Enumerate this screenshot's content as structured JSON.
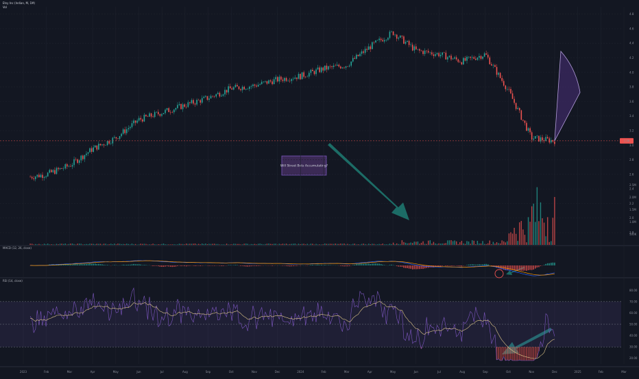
{
  "header": {
    "title": "Etsy Inc (Indian, M, 1M)",
    "sub": "Vol"
  },
  "annotation": {
    "text": "Will Street Bets Accumulating?"
  },
  "indicators": {
    "macd_title": "MACD (12, 26, close)",
    "rsi_title": "RSI (14, close)"
  },
  "colors": {
    "background": "#131722",
    "up": "#26a69a",
    "down": "#ef5350",
    "accent": "#7e57c2",
    "arrow": "#1f7b72",
    "price_line": "#ef5350"
  },
  "chart_data": [
    {
      "type": "candlestick",
      "title": "Etsy Inc (Indian, M, 1M)",
      "x_ticks": [
        "2023",
        "Feb",
        "Mar",
        "Apr",
        "May",
        "Jun",
        "Jul",
        "Aug",
        "Sep",
        "Oct",
        "Nov",
        "Dec",
        "2024",
        "Feb",
        "Mar",
        "Apr",
        "May",
        "Jun",
        "Jul",
        "Aug",
        "Sep",
        "Oct",
        "Nov",
        "Dec",
        "2025",
        "Feb",
        "Mar"
      ],
      "y_ticks": [
        "4.8",
        "4.6",
        "4.4",
        "4.2",
        "4.0",
        "3.8",
        "3.6",
        "3.4",
        "3.2",
        "3.0",
        "2.8",
        "2.6",
        "2.4",
        "2.2",
        "2.0",
        "1.8"
      ],
      "y_range": [
        1.8,
        4.9
      ],
      "last_price": "3.06",
      "path": [
        {
          "x": "2023-01",
          "y": 2.55
        },
        {
          "x": "2023-02",
          "y": 2.6
        },
        {
          "x": "2023-03",
          "y": 2.72
        },
        {
          "x": "2023-04",
          "y": 2.95
        },
        {
          "x": "2023-05",
          "y": 3.1
        },
        {
          "x": "2023-06",
          "y": 3.35
        },
        {
          "x": "2023-07",
          "y": 3.45
        },
        {
          "x": "2023-08",
          "y": 3.55
        },
        {
          "x": "2023-09",
          "y": 3.65
        },
        {
          "x": "2023-10",
          "y": 3.78
        },
        {
          "x": "2023-11",
          "y": 3.82
        },
        {
          "x": "2023-12",
          "y": 3.9
        },
        {
          "x": "2024-01",
          "y": 3.95
        },
        {
          "x": "2024-02",
          "y": 4.05
        },
        {
          "x": "2024-03",
          "y": 4.1
        },
        {
          "x": "2024-04",
          "y": 4.35
        },
        {
          "x": "2024-05",
          "y": 4.55
        },
        {
          "x": "2024-06",
          "y": 4.3
        },
        {
          "x": "2024-07",
          "y": 4.25
        },
        {
          "x": "2024-08",
          "y": 4.15
        },
        {
          "x": "2024-09",
          "y": 4.25
        },
        {
          "x": "2024-10",
          "y": 3.75
        },
        {
          "x": "2024-11",
          "y": 3.1
        },
        {
          "x": "2024-12",
          "y": 3.06
        }
      ]
    },
    {
      "type": "bar",
      "title": "Vol",
      "note": "volume bars rise sharply from Oct 2024 onward",
      "level_ticks": [
        "2.5M",
        "2.0M",
        "1.5M",
        "1.0M",
        "500K"
      ]
    },
    {
      "type": "line",
      "title": "MACD (12, 26, close)",
      "series": [
        {
          "name": "MACD"
        },
        {
          "name": "Signal"
        }
      ]
    },
    {
      "type": "line",
      "title": "RSI (14, close)",
      "y_ticks": [
        "80.00",
        "70.00",
        "60.00",
        "50.00",
        "40.00",
        "30.00",
        "20.00"
      ],
      "band": [
        30,
        70
      ],
      "y_range": [
        15,
        85
      ]
    }
  ]
}
